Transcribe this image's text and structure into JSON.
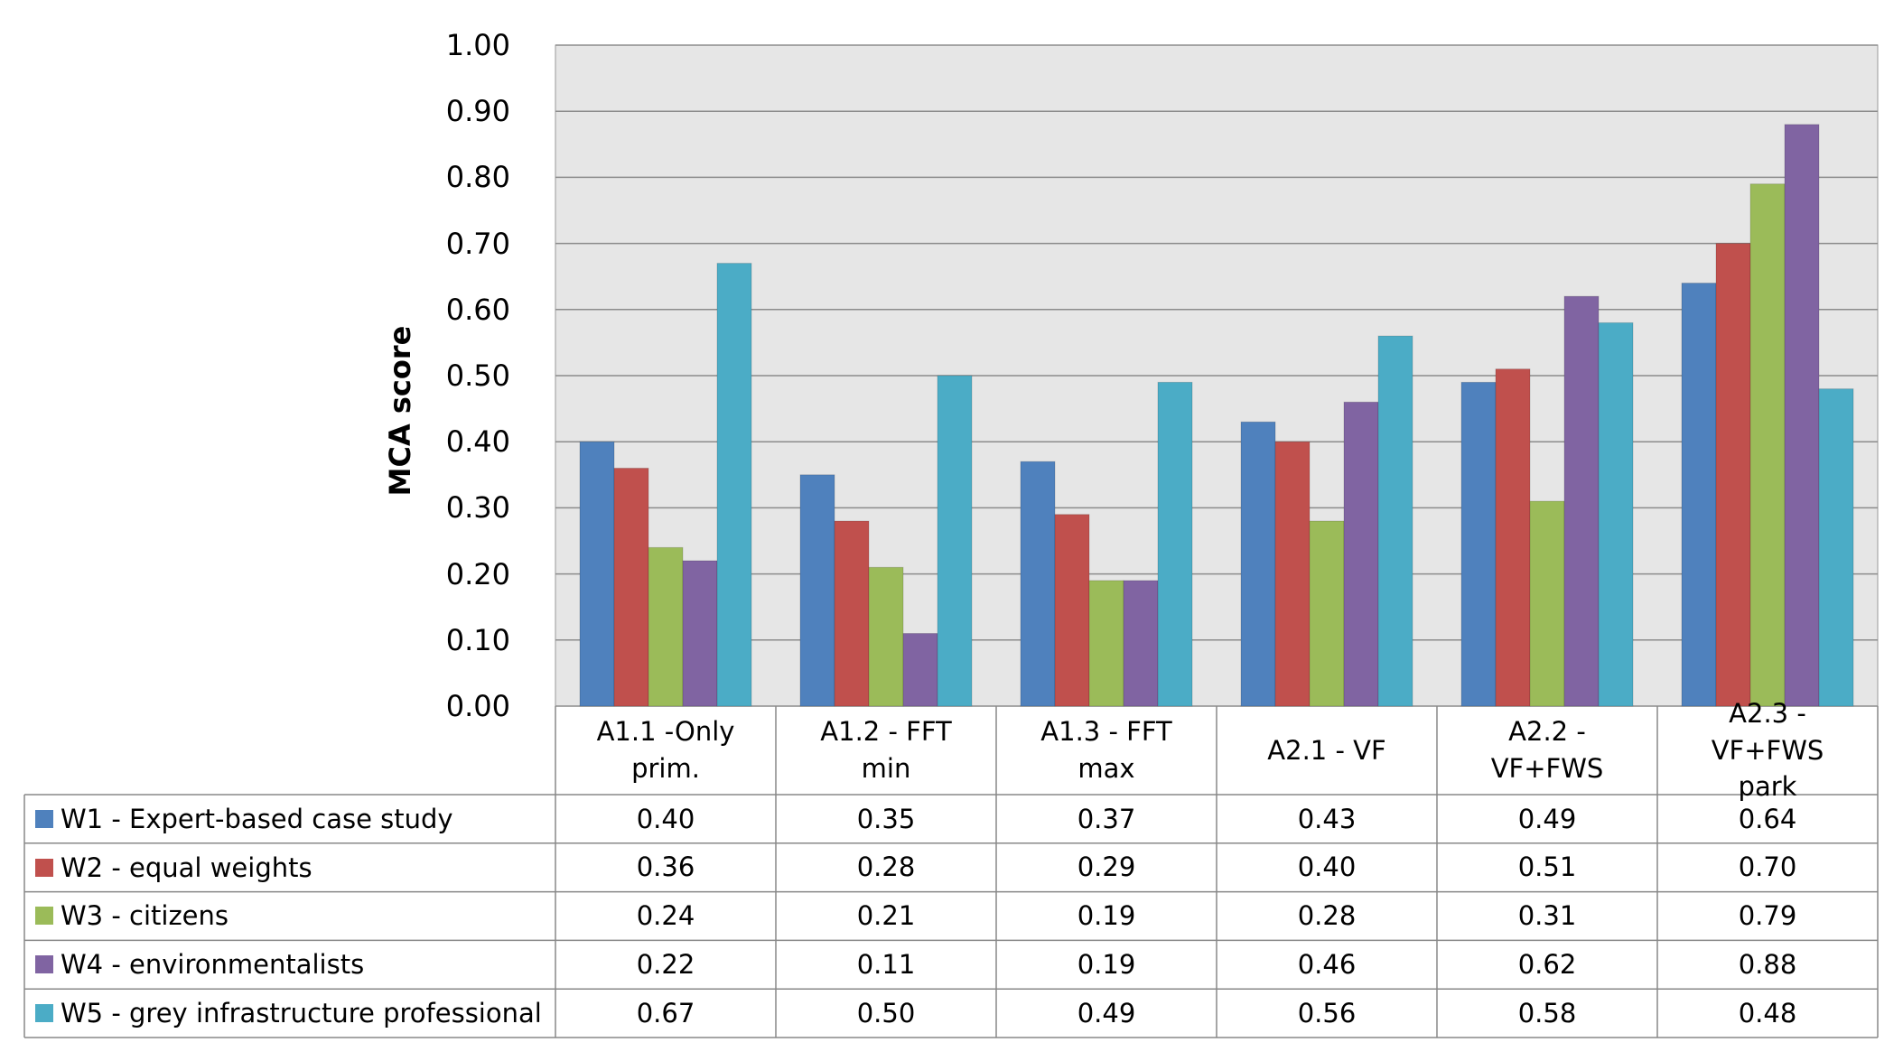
{
  "chart_data": {
    "type": "bar",
    "ylabel": "MCA score",
    "categories": [
      "A1.1 -Only prim.",
      "A1.2 - FFT min",
      "A1.3 - FFT max",
      "A2.1 - VF",
      "A2.2 - VF+FWS",
      "A2.3 - VF+FWS park"
    ],
    "series": [
      {
        "name": "W1 - Expert-based case study",
        "color": "#4f81bd",
        "values": [
          0.4,
          0.35,
          0.37,
          0.43,
          0.49,
          0.64
        ],
        "value_labels": [
          "0.40",
          "0.35",
          "0.37",
          "0.43",
          "0.49",
          "0.64"
        ]
      },
      {
        "name": "W2 - equal weights",
        "color": "#c0504d",
        "values": [
          0.36,
          0.28,
          0.29,
          0.4,
          0.51,
          0.7
        ],
        "value_labels": [
          "0.36",
          "0.28",
          "0.29",
          "0.40",
          "0.51",
          "0.70"
        ]
      },
      {
        "name": "W3 - citizens",
        "color": "#9bbb59",
        "values": [
          0.24,
          0.21,
          0.19,
          0.28,
          0.31,
          0.79
        ],
        "value_labels": [
          "0.24",
          "0.21",
          "0.19",
          "0.28",
          "0.31",
          "0.79"
        ]
      },
      {
        "name": "W4 - environmentalists",
        "color": "#8064a2",
        "values": [
          0.22,
          0.11,
          0.19,
          0.46,
          0.62,
          0.88
        ],
        "value_labels": [
          "0.22",
          "0.11",
          "0.19",
          "0.46",
          "0.62",
          "0.88"
        ]
      },
      {
        "name": "W5 - grey infrastructure professional",
        "color": "#4bacc6",
        "values": [
          0.67,
          0.5,
          0.49,
          0.56,
          0.58,
          0.48
        ],
        "value_labels": [
          "0.67",
          "0.50",
          "0.49",
          "0.56",
          "0.58",
          "0.48"
        ]
      }
    ],
    "ylim": [
      0,
      1
    ],
    "yticks": [
      {
        "value": 0,
        "label": "0.00"
      },
      {
        "value": 0.1,
        "label": "0.10"
      },
      {
        "value": 0.2,
        "label": "0.20"
      },
      {
        "value": 0.3,
        "label": "0.30"
      },
      {
        "value": 0.4,
        "label": "0.40"
      },
      {
        "value": 0.5,
        "label": "0.50"
      },
      {
        "value": 0.6,
        "label": "0.60"
      },
      {
        "value": 0.7,
        "label": "0.70"
      },
      {
        "value": 0.8,
        "label": "0.80"
      },
      {
        "value": 0.9,
        "label": "0.90"
      },
      {
        "value": 1,
        "label": "1.00"
      }
    ],
    "grid": true,
    "data_table": true
  }
}
